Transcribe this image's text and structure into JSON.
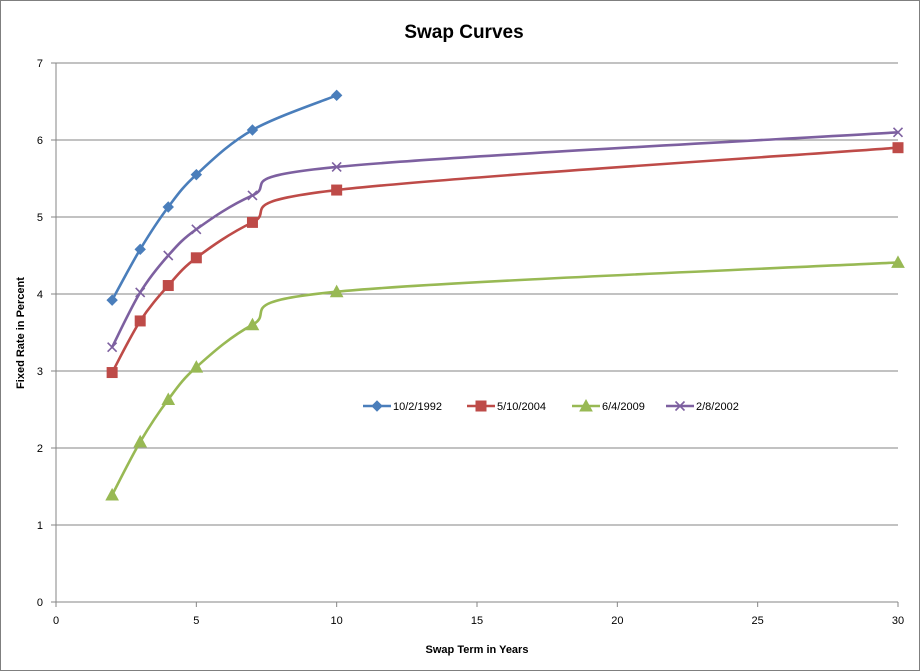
{
  "chart_data": {
    "type": "line",
    "title": "Swap Curves",
    "xlabel": "Swap Term in Years",
    "ylabel": "Fixed Rate in Percent",
    "xlim": [
      0,
      30
    ],
    "ylim": [
      0,
      7
    ],
    "xticks": [
      0,
      5,
      10,
      15,
      20,
      25,
      30
    ],
    "yticks": [
      0,
      1,
      2,
      3,
      4,
      5,
      6,
      7
    ],
    "grid": "horizontal",
    "legend_position": "center",
    "series": [
      {
        "name": "10/2/1992",
        "color": "#4a7ebb",
        "marker": "diamond",
        "points": [
          [
            2,
            3.92
          ],
          [
            3,
            4.58
          ],
          [
            4,
            5.13
          ],
          [
            5,
            5.55
          ],
          [
            7,
            6.13
          ],
          [
            10,
            6.58
          ]
        ]
      },
      {
        "name": "5/10/2004",
        "color": "#be4b48",
        "marker": "square",
        "points": [
          [
            2,
            2.98
          ],
          [
            3,
            3.65
          ],
          [
            4,
            4.11
          ],
          [
            5,
            4.47
          ],
          [
            7,
            4.93
          ],
          [
            10,
            5.35
          ],
          [
            30,
            5.9
          ]
        ]
      },
      {
        "name": "6/4/2009",
        "color": "#98b954",
        "marker": "triangle",
        "points": [
          [
            2,
            1.39
          ],
          [
            3,
            2.08
          ],
          [
            4,
            2.63
          ],
          [
            5,
            3.05
          ],
          [
            7,
            3.6
          ],
          [
            10,
            4.03
          ],
          [
            30,
            4.41
          ]
        ]
      },
      {
        "name": "2/8/2002",
        "color": "#7d60a0",
        "marker": "x",
        "points": [
          [
            2,
            3.31
          ],
          [
            3,
            4.02
          ],
          [
            4,
            4.5
          ],
          [
            5,
            4.84
          ],
          [
            7,
            5.28
          ],
          [
            10,
            5.65
          ],
          [
            30,
            6.1
          ]
        ]
      }
    ]
  }
}
